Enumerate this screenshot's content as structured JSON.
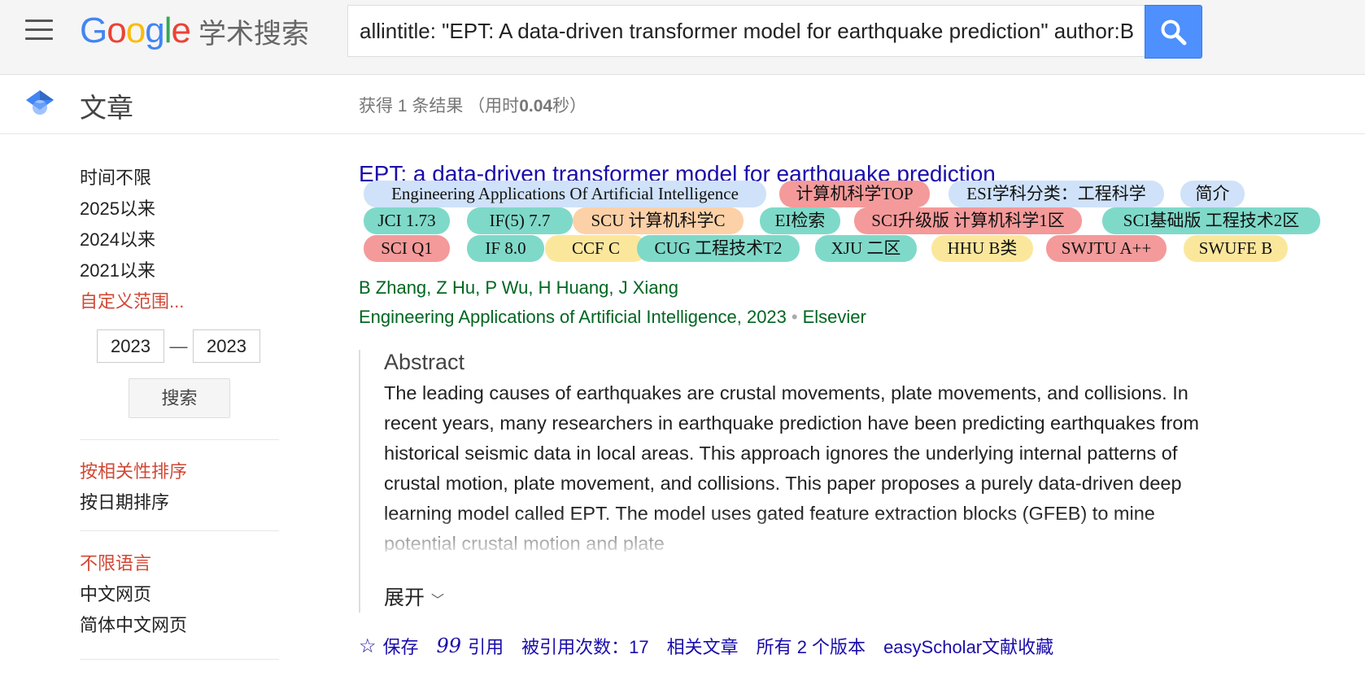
{
  "header": {
    "logo_letters": [
      {
        "ch": "G",
        "color": "#4285f4"
      },
      {
        "ch": "o",
        "color": "#ea4335"
      },
      {
        "ch": "o",
        "color": "#fbbc05"
      },
      {
        "ch": "g",
        "color": "#4285f4"
      },
      {
        "ch": "l",
        "color": "#34a853"
      },
      {
        "ch": "e",
        "color": "#ea4335"
      }
    ],
    "logo_sub": "学术搜索",
    "search_value": "allintitle: \"EPT: A data-driven transformer model for earthquake prediction\" author:B Zhang",
    "menu_icon": "hamburger-menu-icon",
    "search_icon": "magnifier-icon"
  },
  "subbar": {
    "section_title": "文章",
    "stats_prefix": "获得 1 条结果 （用时",
    "stats_time": "0.04",
    "stats_suffix": "秒）"
  },
  "sidebar": {
    "time_items": [
      {
        "label": "时间不限",
        "active": false
      },
      {
        "label": "2025以来",
        "active": false
      },
      {
        "label": "2024以来",
        "active": false
      },
      {
        "label": "2021以来",
        "active": false
      },
      {
        "label": "自定义范围...",
        "active": true
      }
    ],
    "year_from": "2023",
    "year_to": "2023",
    "dash": "—",
    "search_button": "搜索",
    "sort_items": [
      {
        "label": "按相关性排序",
        "active": true
      },
      {
        "label": "按日期排序",
        "active": false
      }
    ],
    "lang_items": [
      {
        "label": "不限语言",
        "active": true
      },
      {
        "label": "中文网页",
        "active": false
      },
      {
        "label": "简体中文网页",
        "active": false
      }
    ]
  },
  "result": {
    "title": "EPT: a data-driven transformer model for earthquake prediction",
    "badges": [
      {
        "label": "Engineering Applications Of Artificial Intelligence",
        "color": "#cfe2f9"
      },
      {
        "label": "计算机科学TOP",
        "color": "#f49a9a"
      },
      {
        "label": "ESI学科分类：工程科学",
        "color": "#cfe2f9"
      },
      {
        "label": "简介",
        "color": "#cfe2f9"
      },
      {
        "label": "JCI 1.73",
        "color": "#7fd9c9"
      },
      {
        "label": "IF(5) 7.7",
        "color": "#7fd9c9"
      },
      {
        "label": "SCU 计算机科学C",
        "color": "#fcd1a8"
      },
      {
        "label": "EI检索",
        "color": "#7fd9c9"
      },
      {
        "label": "SCI升级版 计算机科学1区",
        "color": "#f49a9a"
      },
      {
        "label": "SCI基础版 工程技术2区",
        "color": "#7fd9c9"
      },
      {
        "label": "SCI Q1",
        "color": "#f49a9a"
      },
      {
        "label": "IF 8.0",
        "color": "#7fd9c9"
      },
      {
        "label": "CCF C",
        "color": "#fbe79c"
      },
      {
        "label": "CUG 工程技术T2",
        "color": "#7fd9c9"
      },
      {
        "label": "XJU 二区",
        "color": "#7fd9c9"
      },
      {
        "label": "HHU B类",
        "color": "#fbe79c"
      },
      {
        "label": "SWJTU A++",
        "color": "#f49a9a"
      },
      {
        "label": "SWUFE B",
        "color": "#fbe79c"
      }
    ],
    "authors": [
      "B Zhang",
      "Z Hu",
      "P Wu",
      "H Huang",
      "J Xiang"
    ],
    "venue_text": "Engineering Applications of Artificial Intelligence, 2023",
    "venue_sep": "•",
    "publisher": "Elsevier",
    "abstract_title": "Abstract",
    "abstract_text": "The leading causes of earthquakes are crustal movements, plate movements, and collisions. In recent years, many researchers in earthquake prediction have been predicting earthquakes from historical seismic data in local areas. This approach ignores the underlying internal patterns of crustal motion, plate movement, and collisions. This paper proposes a purely data-driven deep learning model called EPT. The model uses gated feature extraction blocks (GFEB) to mine potential crustal motion and plate",
    "expand_label": "展开",
    "actions": {
      "save": "保存",
      "cite": "引用",
      "cited_by": "被引用次数：17",
      "related": "相关文章",
      "versions": "所有 2 个版本",
      "easyscholar": "easyScholar文献收藏"
    }
  }
}
